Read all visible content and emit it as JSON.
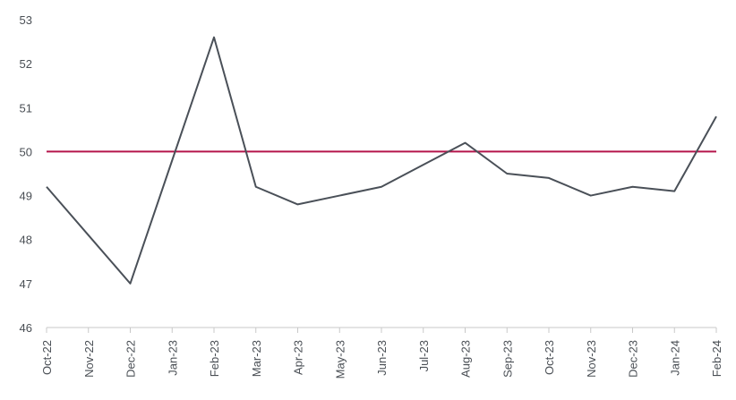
{
  "chart_data": {
    "type": "line",
    "title": "",
    "xlabel": "",
    "ylabel": "",
    "categories": [
      "Oct-22",
      "Nov-22",
      "Dec-22",
      "Jan-23",
      "Feb-23",
      "Mar-23",
      "Apr-23",
      "May-23",
      "Jun-23",
      "Jul-23",
      "Aug-23",
      "Sep-23",
      "Oct-23",
      "Nov-23",
      "Dec-23",
      "Jan-24",
      "Feb-24"
    ],
    "series": [
      {
        "values": [
          49.2,
          48.1,
          47.0,
          49.8,
          52.6,
          49.2,
          48.8,
          49.0,
          49.2,
          49.7,
          50.2,
          49.5,
          49.4,
          49.0,
          49.2,
          49.1,
          50.8
        ],
        "color": "#4a5058"
      }
    ],
    "reference_line": {
      "value": 50,
      "color": "#b5154b"
    },
    "ylim": [
      46,
      53
    ],
    "yticks": [
      "46",
      "47",
      "48",
      "49",
      "50",
      "51",
      "52",
      "53"
    ],
    "grid": false,
    "legend": "none"
  }
}
